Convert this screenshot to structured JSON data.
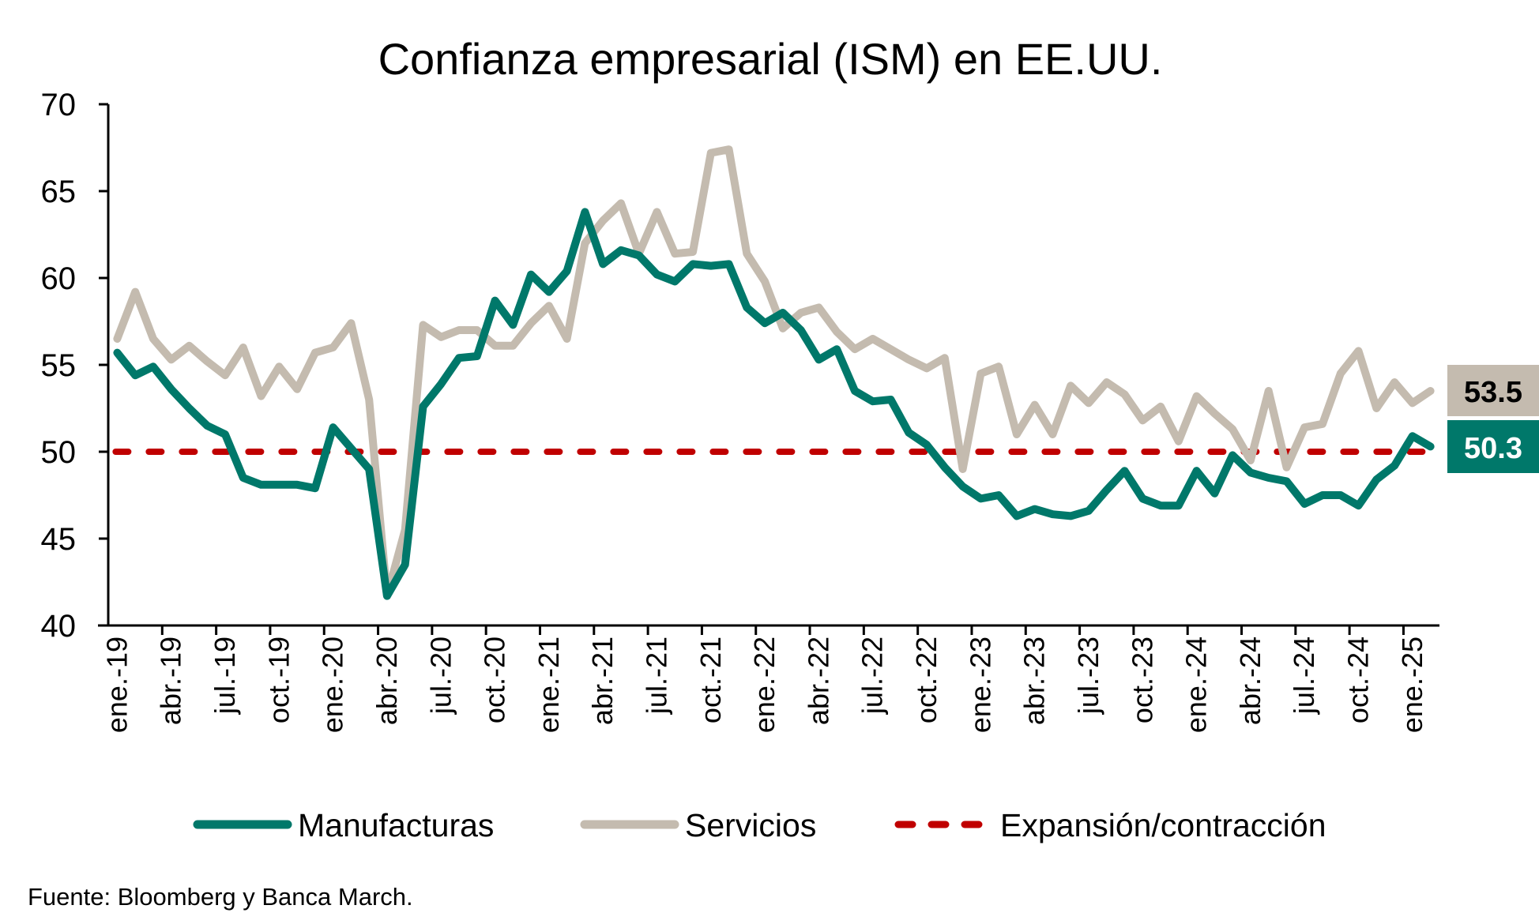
{
  "chart_data": {
    "type": "line",
    "title": "Confianza empresarial (ISM) en EE.UU.",
    "xlabel": "",
    "ylabel": "",
    "ylim": [
      40,
      70
    ],
    "yticks": [
      40,
      45,
      50,
      55,
      60,
      65,
      70
    ],
    "x_start": "ene.-19",
    "x_end": "feb.-25",
    "frequency": "monthly",
    "xtick_labels": [
      "ene.-19",
      "abr.-19",
      "jul.-19",
      "oct.-19",
      "ene.-20",
      "abr.-20",
      "jul.-20",
      "oct.-20",
      "ene.-21",
      "abr.-21",
      "jul.-21",
      "oct.-21",
      "ene.-22",
      "abr.-22",
      "jul.-22",
      "oct.-22",
      "ene.-23",
      "abr.-23",
      "jul.-23",
      "oct.-23",
      "ene.-24",
      "abr.-24",
      "jul.-24",
      "oct.-24",
      "ene.-25"
    ],
    "series": [
      {
        "name": "Manufacturas",
        "color": "#00786A",
        "values": [
          55.7,
          54.4,
          54.9,
          53.6,
          52.5,
          51.5,
          51.0,
          48.5,
          48.1,
          48.1,
          48.1,
          47.9,
          51.4,
          50.2,
          49.0,
          41.7,
          43.5,
          52.6,
          53.9,
          55.4,
          55.5,
          58.7,
          57.3,
          60.2,
          59.2,
          60.4,
          63.8,
          60.8,
          61.6,
          61.3,
          60.2,
          59.8,
          60.8,
          60.7,
          60.8,
          58.3,
          57.4,
          58.0,
          57.0,
          55.3,
          55.9,
          53.5,
          52.9,
          53.0,
          51.1,
          50.4,
          49.1,
          48.0,
          47.3,
          47.5,
          46.3,
          46.7,
          46.4,
          46.3,
          46.6,
          47.8,
          48.9,
          47.3,
          46.9,
          46.9,
          48.9,
          47.6,
          49.8,
          48.8,
          48.5,
          48.3,
          47.0,
          47.5,
          47.5,
          46.9,
          48.4,
          49.2,
          50.9,
          50.3
        ],
        "last_value_label": "50.3"
      },
      {
        "name": "Servicios",
        "color": "#C4BBAF",
        "values": [
          56.5,
          59.2,
          56.5,
          55.3,
          56.1,
          55.2,
          54.4,
          56.0,
          53.2,
          54.9,
          53.6,
          55.7,
          56.0,
          57.4,
          53.0,
          41.7,
          45.5,
          57.3,
          56.6,
          57.0,
          57.0,
          56.1,
          56.1,
          57.4,
          58.4,
          56.5,
          62.0,
          63.3,
          64.3,
          61.4,
          63.8,
          61.4,
          61.5,
          67.2,
          67.4,
          61.4,
          59.8,
          57.1,
          58.0,
          58.3,
          56.9,
          55.9,
          56.5,
          55.9,
          55.3,
          54.8,
          55.4,
          49.0,
          54.5,
          54.9,
          51.0,
          52.7,
          51.0,
          53.8,
          52.8,
          54.0,
          53.3,
          51.8,
          52.6,
          50.6,
          53.2,
          52.2,
          51.3,
          49.5,
          53.5,
          49.1,
          51.4,
          51.6,
          54.5,
          55.8,
          52.5,
          54.0,
          52.8,
          53.5
        ],
        "last_value_label": "53.5"
      }
    ],
    "reference_line": {
      "name": "Expansión/contracción",
      "value": 50,
      "color": "#C00000",
      "style": "dashed"
    },
    "legend": {
      "position": "bottom",
      "entries": [
        "Manufacturas",
        "Servicios",
        "Expansión/contracción"
      ]
    },
    "grid": false
  },
  "source": "Fuente: Bloomberg y Banca March."
}
